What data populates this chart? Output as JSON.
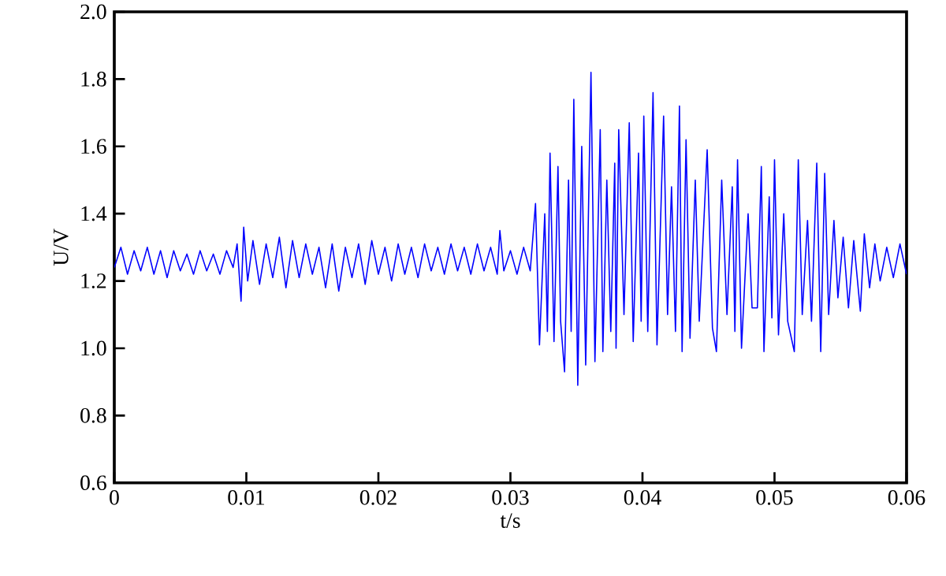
{
  "chart_data": {
    "type": "line",
    "xlabel": "t/s",
    "ylabel": "U/V",
    "color": "#0000ff",
    "xlim": [
      0,
      0.06
    ],
    "ylim": [
      0.6,
      2.0
    ],
    "xticks": [
      0,
      0.01,
      0.02,
      0.03,
      0.04,
      0.05,
      0.06
    ],
    "yticks": [
      {
        "value": 0.6,
        "label": "0.6"
      },
      {
        "value": 0.8,
        "label": "0.8"
      },
      {
        "value": 1.0,
        "label": "1.0"
      },
      {
        "value": 1.2,
        "label": "1.2"
      },
      {
        "value": 1.4,
        "label": "1.4"
      },
      {
        "value": 1.6,
        "label": "1.6"
      },
      {
        "value": 1.8,
        "label": "1.8"
      },
      {
        "value": 2.0,
        "label": "2.0"
      }
    ],
    "x": [
      0,
      0.0005,
      0.001,
      0.0015,
      0.002,
      0.0025,
      0.003,
      0.0035,
      0.004,
      0.0045,
      0.005,
      0.0055,
      0.006,
      0.0065,
      0.007,
      0.0075,
      0.008,
      0.0085,
      0.009,
      0.0093,
      0.0096,
      0.0098,
      0.0101,
      0.0105,
      0.011,
      0.0115,
      0.012,
      0.0125,
      0.013,
      0.0135,
      0.014,
      0.0145,
      0.015,
      0.0155,
      0.016,
      0.0165,
      0.017,
      0.0175,
      0.018,
      0.0185,
      0.019,
      0.0195,
      0.02,
      0.0205,
      0.021,
      0.0215,
      0.022,
      0.0225,
      0.023,
      0.0235,
      0.024,
      0.0245,
      0.025,
      0.0255,
      0.026,
      0.0265,
      0.027,
      0.0275,
      0.028,
      0.0285,
      0.029,
      0.0292,
      0.0295,
      0.03,
      0.0305,
      0.031,
      0.0315,
      0.0319,
      0.0322,
      0.0326,
      0.0328,
      0.033,
      0.0333,
      0.0336,
      0.0338,
      0.0341,
      0.0344,
      0.0346,
      0.0348,
      0.0351,
      0.0354,
      0.0357,
      0.0361,
      0.0364,
      0.0368,
      0.037,
      0.0373,
      0.0376,
      0.0379,
      0.038,
      0.0382,
      0.0386,
      0.039,
      0.0393,
      0.0397,
      0.0399,
      0.0401,
      0.0404,
      0.0408,
      0.0411,
      0.0416,
      0.0419,
      0.0422,
      0.0425,
      0.0428,
      0.043,
      0.0433,
      0.0436,
      0.044,
      0.0443,
      0.0449,
      0.0453,
      0.0456,
      0.046,
      0.0464,
      0.0468,
      0.047,
      0.0472,
      0.0475,
      0.048,
      0.0483,
      0.0487,
      0.049,
      0.0492,
      0.0496,
      0.0498,
      0.05,
      0.0503,
      0.0507,
      0.051,
      0.0515,
      0.0518,
      0.0521,
      0.0525,
      0.0528,
      0.0532,
      0.0535,
      0.0538,
      0.0541,
      0.0545,
      0.0548,
      0.0552,
      0.0556,
      0.056,
      0.0565,
      0.0568,
      0.0572,
      0.0576,
      0.058,
      0.0585,
      0.059,
      0.0595,
      0.06
    ],
    "values": [
      1.24,
      1.3,
      1.22,
      1.29,
      1.23,
      1.3,
      1.22,
      1.29,
      1.21,
      1.29,
      1.23,
      1.28,
      1.22,
      1.29,
      1.23,
      1.28,
      1.22,
      1.29,
      1.24,
      1.31,
      1.14,
      1.36,
      1.2,
      1.32,
      1.19,
      1.31,
      1.21,
      1.33,
      1.18,
      1.32,
      1.21,
      1.31,
      1.22,
      1.3,
      1.18,
      1.31,
      1.17,
      1.3,
      1.21,
      1.31,
      1.19,
      1.32,
      1.22,
      1.3,
      1.2,
      1.31,
      1.22,
      1.3,
      1.21,
      1.31,
      1.23,
      1.3,
      1.22,
      1.31,
      1.23,
      1.3,
      1.22,
      1.31,
      1.23,
      1.3,
      1.22,
      1.35,
      1.23,
      1.29,
      1.22,
      1.3,
      1.23,
      1.43,
      1.01,
      1.4,
      1.05,
      1.58,
      1.02,
      1.54,
      1.08,
      0.93,
      1.5,
      1.05,
      1.74,
      0.89,
      1.6,
      0.95,
      1.82,
      0.96,
      1.65,
      0.99,
      1.5,
      1.05,
      1.55,
      1.0,
      1.65,
      1.1,
      1.67,
      1.02,
      1.58,
      1.08,
      1.69,
      1.05,
      1.76,
      1.01,
      1.69,
      1.1,
      1.48,
      1.05,
      1.72,
      0.99,
      1.62,
      1.03,
      1.5,
      1.08,
      1.59,
      1.06,
      0.99,
      1.5,
      1.1,
      1.48,
      1.05,
      1.56,
      1.0,
      1.4,
      1.12,
      1.12,
      1.54,
      0.99,
      1.45,
      1.09,
      1.56,
      1.04,
      1.4,
      1.08,
      0.99,
      1.56,
      1.1,
      1.38,
      1.08,
      1.55,
      0.99,
      1.52,
      1.1,
      1.38,
      1.15,
      1.33,
      1.12,
      1.32,
      1.11,
      1.34,
      1.18,
      1.31,
      1.2,
      1.3,
      1.21,
      1.31,
      1.22
    ]
  }
}
